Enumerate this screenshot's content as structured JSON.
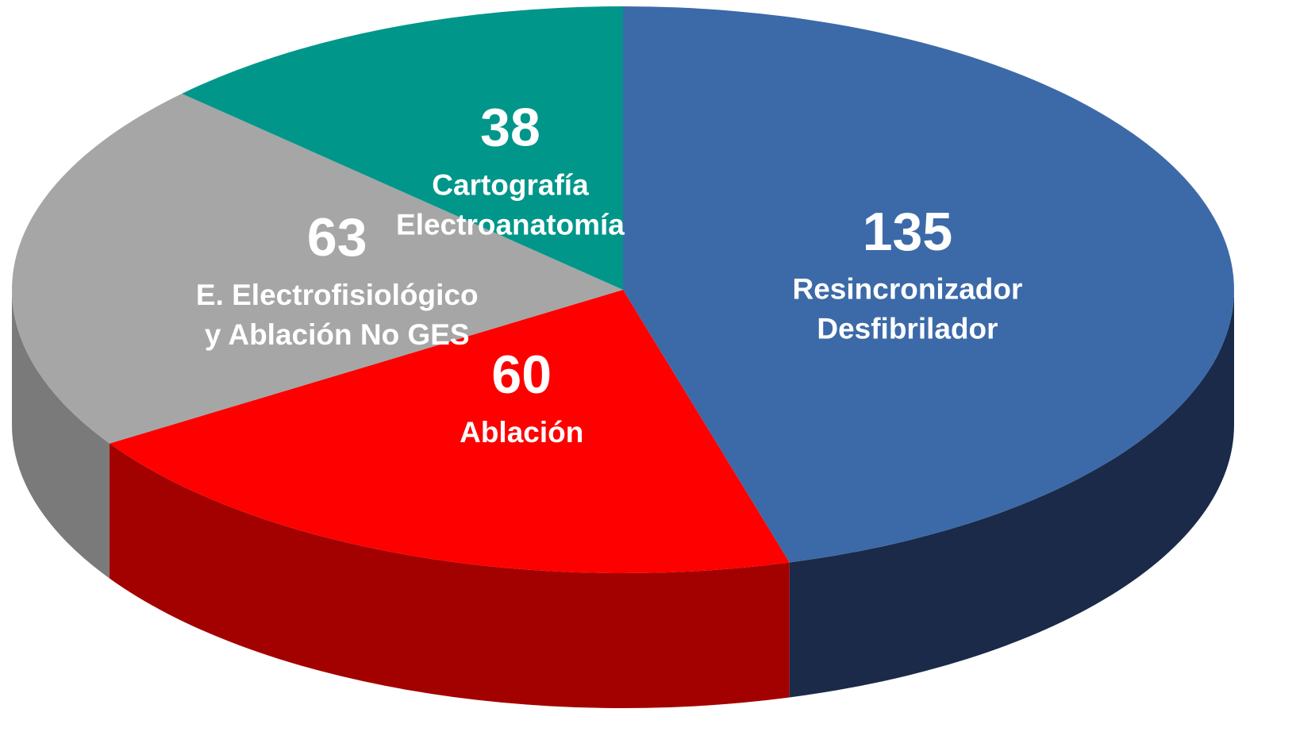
{
  "chart_data": {
    "type": "pie",
    "categories": [
      [
        "Resincronizador",
        "Desfibrilador"
      ],
      [
        "Ablación"
      ],
      [
        "E. Electrofisiológico",
        "y Ablación No GES"
      ],
      [
        "Cartografía",
        "Electroanatomía"
      ]
    ],
    "values": [
      135,
      60,
      63,
      38
    ],
    "colors": [
      "#3c6aa8",
      "#fe0000",
      "#a6a6a6",
      "#00968a"
    ],
    "side_colors": [
      "#1a2a48",
      "#a30000",
      "#7a7a7a",
      "#006a62"
    ]
  }
}
